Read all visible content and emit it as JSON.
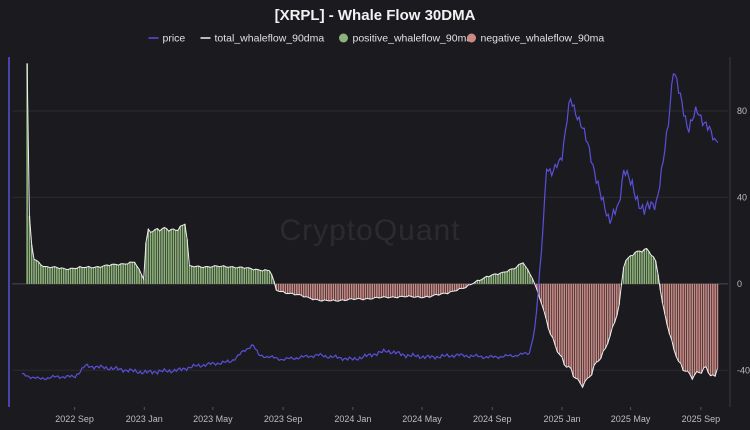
{
  "chart_data": {
    "type": "line",
    "title": "[XRPL] - Whale Flow 30DMA",
    "watermark": "CryptoQuant",
    "legend_position": "top-center",
    "grid": true,
    "series": [
      {
        "name": "price",
        "kind": "line",
        "color": "#5a4fd8",
        "axis": "right"
      },
      {
        "name": "total_whaleflow_90dma",
        "kind": "line",
        "color": "#f0f0f0",
        "axis": "right"
      },
      {
        "name": "positive_whaleflow_90ma",
        "kind": "bar",
        "color": "#8db37a",
        "axis": "right"
      },
      {
        "name": "negative_whaleflow_90ma",
        "kind": "bar",
        "color": "#c98a86",
        "axis": "right"
      }
    ],
    "x_ticks": [
      "2022 Sep",
      "2023 Jan",
      "2023 May",
      "2023 Sep",
      "2024 Jan",
      "2024 May",
      "2024 Sep",
      "2025 Jan",
      "2025 May",
      "2025 Sep"
    ],
    "x_range": [
      "2022-06",
      "2025-10"
    ],
    "y_right_ticks": [
      "80",
      "40",
      "0",
      "-40"
    ],
    "y_right_range": [
      -57,
      105
    ],
    "whaleflow_points": [
      [
        "2022-06-10",
        100
      ],
      [
        "2022-06-14",
        30
      ],
      [
        "2022-06-20",
        12
      ],
      [
        "2022-07-10",
        8
      ],
      [
        "2022-08-15",
        7
      ],
      [
        "2022-10-15",
        8
      ],
      [
        "2022-12-15",
        10
      ],
      [
        "2023-01-01",
        2
      ],
      [
        "2023-01-05",
        25
      ],
      [
        "2023-02-20",
        25
      ],
      [
        "2023-03-10",
        27
      ],
      [
        "2023-03-15",
        29
      ],
      [
        "2023-03-20",
        8
      ],
      [
        "2023-06-01",
        8
      ],
      [
        "2023-08-10",
        6
      ],
      [
        "2023-08-20",
        -3
      ],
      [
        "2023-10-10",
        -6
      ],
      [
        "2023-11-10",
        -8
      ],
      [
        "2024-01-15",
        -7
      ],
      [
        "2024-03-15",
        -6
      ],
      [
        "2024-05-15",
        -6
      ],
      [
        "2024-06-15",
        -4
      ],
      [
        "2024-07-15",
        -2
      ],
      [
        "2024-08-01",
        1
      ],
      [
        "2024-09-01",
        4
      ],
      [
        "2024-10-10",
        7
      ],
      [
        "2024-10-25",
        10
      ],
      [
        "2024-11-10",
        3
      ],
      [
        "2024-11-25",
        -8
      ],
      [
        "2024-12-10",
        -22
      ],
      [
        "2025-01-05",
        -37
      ],
      [
        "2025-02-01",
        -46
      ],
      [
        "2025-02-15",
        -44
      ],
      [
        "2025-03-15",
        -32
      ],
      [
        "2025-04-10",
        -12
      ],
      [
        "2025-04-20",
        10
      ],
      [
        "2025-05-10",
        15
      ],
      [
        "2025-05-30",
        16
      ],
      [
        "2025-06-15",
        10
      ],
      [
        "2025-06-25",
        -8
      ],
      [
        "2025-07-10",
        -25
      ],
      [
        "2025-07-25",
        -38
      ],
      [
        "2025-08-15",
        -42
      ],
      [
        "2025-09-10",
        -40
      ],
      [
        "2025-09-25",
        -44
      ],
      [
        "2025-10-01",
        -36
      ]
    ],
    "price_points": [
      [
        "2022-06-01",
        -42
      ],
      [
        "2022-07-01",
        -44
      ],
      [
        "2022-08-01",
        -43
      ],
      [
        "2022-09-01",
        -43
      ],
      [
        "2022-09-20",
        -38
      ],
      [
        "2022-11-01",
        -39
      ],
      [
        "2023-01-01",
        -41
      ],
      [
        "2023-03-01",
        -40
      ],
      [
        "2023-04-01",
        -38
      ],
      [
        "2023-06-01",
        -36
      ],
      [
        "2023-07-10",
        -28
      ],
      [
        "2023-07-20",
        -33
      ],
      [
        "2023-09-01",
        -35
      ],
      [
        "2023-11-01",
        -33
      ],
      [
        "2024-01-01",
        -35
      ],
      [
        "2024-03-01",
        -31
      ],
      [
        "2024-04-01",
        -33
      ],
      [
        "2024-05-15",
        -34
      ],
      [
        "2024-07-01",
        -33
      ],
      [
        "2024-09-01",
        -34
      ],
      [
        "2024-10-15",
        -33
      ],
      [
        "2024-11-05",
        -32
      ],
      [
        "2024-11-15",
        -20
      ],
      [
        "2024-11-25",
        10
      ],
      [
        "2024-12-05",
        55
      ],
      [
        "2024-12-15",
        50
      ],
      [
        "2025-01-01",
        60
      ],
      [
        "2025-01-15",
        85
      ],
      [
        "2025-02-01",
        76
      ],
      [
        "2025-02-20",
        60
      ],
      [
        "2025-03-10",
        40
      ],
      [
        "2025-03-25",
        30
      ],
      [
        "2025-04-10",
        35
      ],
      [
        "2025-04-20",
        55
      ],
      [
        "2025-05-10",
        40
      ],
      [
        "2025-05-25",
        34
      ],
      [
        "2025-06-15",
        38
      ],
      [
        "2025-06-25",
        52
      ],
      [
        "2025-07-05",
        72
      ],
      [
        "2025-07-15",
        100
      ],
      [
        "2025-07-25",
        88
      ],
      [
        "2025-08-10",
        72
      ],
      [
        "2025-08-25",
        80
      ],
      [
        "2025-09-10",
        74
      ],
      [
        "2025-09-25",
        66
      ],
      [
        "2025-10-01",
        68
      ]
    ]
  }
}
